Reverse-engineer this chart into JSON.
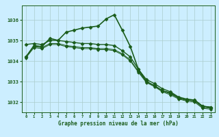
{
  "background_color": "#cceeff",
  "grid_color": "#aacccc",
  "line_color": "#1a5c1a",
  "xlabel": "Graphe pression niveau de la mer (hPa)",
  "xlim": [
    -0.5,
    23.5
  ],
  "ylim": [
    1031.5,
    1036.7
  ],
  "yticks": [
    1032,
    1033,
    1034,
    1035,
    1036
  ],
  "xticks": [
    0,
    1,
    2,
    3,
    4,
    5,
    6,
    7,
    8,
    9,
    10,
    11,
    12,
    13,
    14,
    15,
    16,
    17,
    18,
    19,
    20,
    21,
    22,
    23
  ],
  "series": [
    {
      "x": [
        0,
        1,
        2,
        3,
        4,
        5,
        6,
        7,
        8,
        9,
        10,
        11,
        12,
        13,
        14,
        15,
        16,
        17,
        18,
        19,
        20,
        21,
        22,
        23
      ],
      "y": [
        1034.2,
        1034.75,
        1034.7,
        1035.1,
        1035.0,
        1035.4,
        1035.5,
        1035.6,
        1035.65,
        1035.7,
        1036.05,
        1036.25,
        1035.5,
        1034.7,
        1033.6,
        1033.0,
        1032.8,
        1032.55,
        1032.45,
        1032.2,
        1032.1,
        1032.1,
        1031.8,
        1031.75
      ],
      "marker": "D",
      "markersize": 2.5,
      "linewidth": 1.2
    },
    {
      "x": [
        0,
        1,
        2,
        3,
        4,
        5,
        6,
        7,
        8,
        9,
        10,
        11,
        12,
        13,
        14,
        15,
        16,
        17,
        18,
        19,
        20,
        21,
        22,
        23
      ],
      "y": [
        1034.8,
        1034.85,
        1034.8,
        1035.0,
        1035.0,
        1034.95,
        1034.9,
        1034.85,
        1034.85,
        1034.8,
        1034.8,
        1034.75,
        1034.5,
        1034.2,
        1033.6,
        1033.1,
        1032.9,
        1032.65,
        1032.5,
        1032.25,
        1032.15,
        1032.1,
        1031.8,
        1031.75
      ],
      "marker": "D",
      "markersize": 2.5,
      "linewidth": 1.0
    },
    {
      "x": [
        0,
        1,
        2,
        3,
        4,
        5,
        6,
        7,
        8,
        9,
        10,
        11,
        12,
        13,
        14,
        15,
        16,
        17,
        18,
        19,
        20,
        21,
        22,
        23
      ],
      "y": [
        1034.2,
        1034.7,
        1034.65,
        1034.85,
        1034.85,
        1034.75,
        1034.7,
        1034.65,
        1034.65,
        1034.6,
        1034.6,
        1034.55,
        1034.35,
        1034.05,
        1033.5,
        1033.0,
        1032.8,
        1032.55,
        1032.4,
        1032.2,
        1032.1,
        1032.05,
        1031.75,
        1031.7
      ],
      "marker": "D",
      "markersize": 2.5,
      "linewidth": 0.8
    },
    {
      "x": [
        0,
        1,
        2,
        3,
        4,
        5,
        6,
        7,
        8,
        9,
        10,
        11,
        12,
        13,
        14,
        15,
        16,
        17,
        18,
        19,
        20,
        21,
        22,
        23
      ],
      "y": [
        1034.15,
        1034.65,
        1034.6,
        1034.8,
        1034.8,
        1034.7,
        1034.65,
        1034.6,
        1034.6,
        1034.55,
        1034.55,
        1034.5,
        1034.3,
        1034.0,
        1033.45,
        1032.95,
        1032.75,
        1032.5,
        1032.35,
        1032.15,
        1032.05,
        1032.0,
        1031.7,
        1031.65
      ],
      "marker": "D",
      "markersize": 2.0,
      "linewidth": 0.7
    }
  ]
}
